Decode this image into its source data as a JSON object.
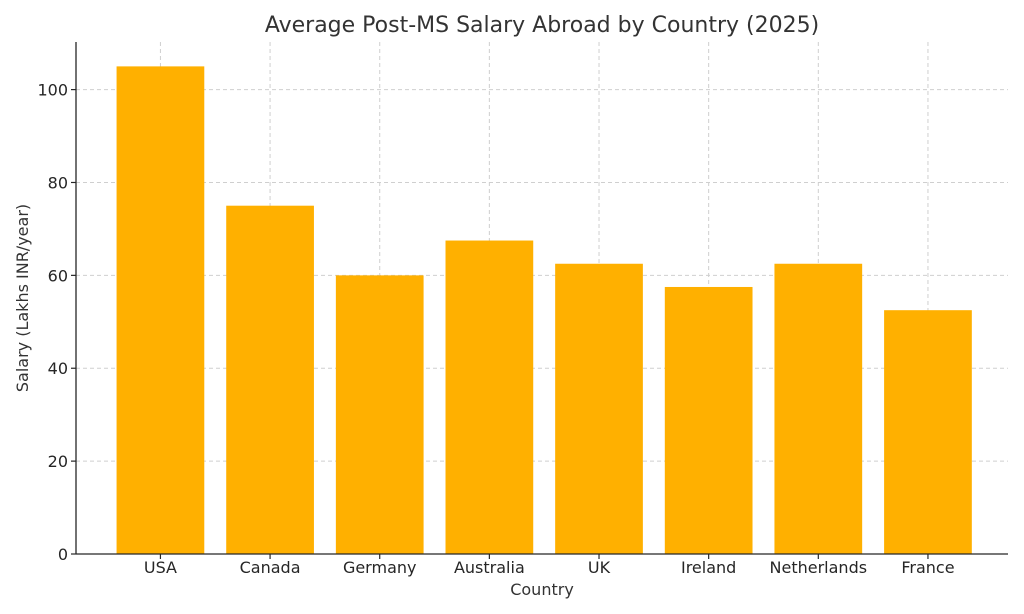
{
  "chart_data": {
    "type": "bar",
    "title": "Average Post-MS Salary Abroad by Country (2025)",
    "xlabel": "Country",
    "ylabel": "Salary (Lakhs INR/year)",
    "categories": [
      "USA",
      "Canada",
      "Germany",
      "Australia",
      "UK",
      "Ireland",
      "Netherlands",
      "France"
    ],
    "values": [
      105,
      75,
      60,
      67.5,
      62.5,
      57.5,
      62.5,
      52.5
    ],
    "ylim": [
      0,
      110.25
    ],
    "yticks": [
      0,
      20,
      40,
      60,
      80,
      100
    ],
    "grid": true,
    "bar_color": "#FFB000"
  }
}
